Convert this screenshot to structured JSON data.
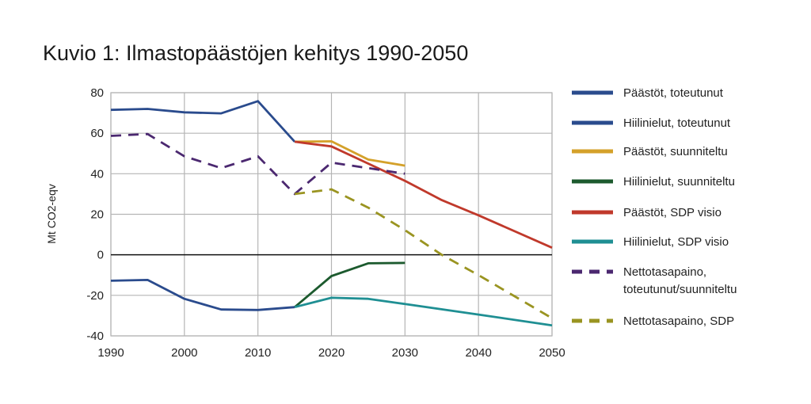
{
  "chart_data": {
    "type": "line",
    "title": "Kuvio 1: Ilmastopäästöjen kehitys 1990-2050",
    "xlabel": "",
    "ylabel": "Mt CO2-eqv",
    "xlim": [
      1990,
      2050
    ],
    "ylim": [
      -40,
      80
    ],
    "x_ticks": [
      1990,
      2000,
      2010,
      2020,
      2030,
      2040,
      2050
    ],
    "y_ticks": [
      -40,
      -20,
      0,
      20,
      40,
      60,
      80
    ],
    "grid": true,
    "legend_position": "right",
    "series": [
      {
        "name": "Päästöt, toteutunut",
        "color": "#2a4b8d",
        "dash": false,
        "points": [
          [
            1990,
            71.5
          ],
          [
            1995,
            72
          ],
          [
            2000,
            70.3
          ],
          [
            2005,
            69.8
          ],
          [
            2010,
            75.8
          ],
          [
            2015,
            55.8
          ]
        ]
      },
      {
        "name": "Hiilinielut, toteutunut",
        "color": "#2a4b8d",
        "dash": false,
        "points": [
          [
            1990,
            -12.8
          ],
          [
            1995,
            -12.4
          ],
          [
            2000,
            -21.7
          ],
          [
            2005,
            -27
          ],
          [
            2010,
            -27.2
          ],
          [
            2015,
            -25.8
          ]
        ]
      },
      {
        "name": "Päästöt, suunniteltu",
        "color": "#d4a12a",
        "dash": false,
        "points": [
          [
            2015,
            55.8
          ],
          [
            2020,
            56
          ],
          [
            2025,
            47
          ],
          [
            2030,
            44
          ]
        ]
      },
      {
        "name": "Hiilinielut, suunniteltu",
        "color": "#1c5a2e",
        "dash": false,
        "points": [
          [
            2015,
            -25.8
          ],
          [
            2020,
            -10.5
          ],
          [
            2025,
            -4.2
          ],
          [
            2030,
            -4
          ]
        ]
      },
      {
        "name": "Päästöt, SDP visio",
        "color": "#c0392b",
        "dash": false,
        "points": [
          [
            2015,
            55.8
          ],
          [
            2020,
            53.5
          ],
          [
            2025,
            45
          ],
          [
            2030,
            36.5
          ],
          [
            2035,
            27
          ],
          [
            2040,
            19.5
          ],
          [
            2050,
            3.5
          ]
        ]
      },
      {
        "name": "Hiilinielut, SDP visio",
        "color": "#1f8f93",
        "dash": false,
        "points": [
          [
            2015,
            -25.8
          ],
          [
            2020,
            -21.2
          ],
          [
            2025,
            -21.7
          ],
          [
            2030,
            -24.3
          ],
          [
            2040,
            -29.5
          ],
          [
            2050,
            -34.8
          ]
        ]
      },
      {
        "name": "Nettotasapaino, toteutunut/suunniteltu",
        "color": "#4b2870",
        "dash": true,
        "points": [
          [
            1990,
            58.7
          ],
          [
            1995,
            59.6
          ],
          [
            2000,
            48.6
          ],
          [
            2005,
            42.8
          ],
          [
            2010,
            48.6
          ],
          [
            2015,
            30
          ],
          [
            2020,
            45.5
          ],
          [
            2025,
            42.8
          ],
          [
            2030,
            40
          ]
        ]
      },
      {
        "name": "Nettotasapaino, SDP",
        "color": "#9a9421",
        "dash": true,
        "points": [
          [
            2015,
            30
          ],
          [
            2020,
            32.3
          ],
          [
            2025,
            23.3
          ],
          [
            2030,
            12.2
          ],
          [
            2035,
            0
          ],
          [
            2040,
            -10
          ],
          [
            2050,
            -31.3
          ]
        ]
      }
    ]
  }
}
